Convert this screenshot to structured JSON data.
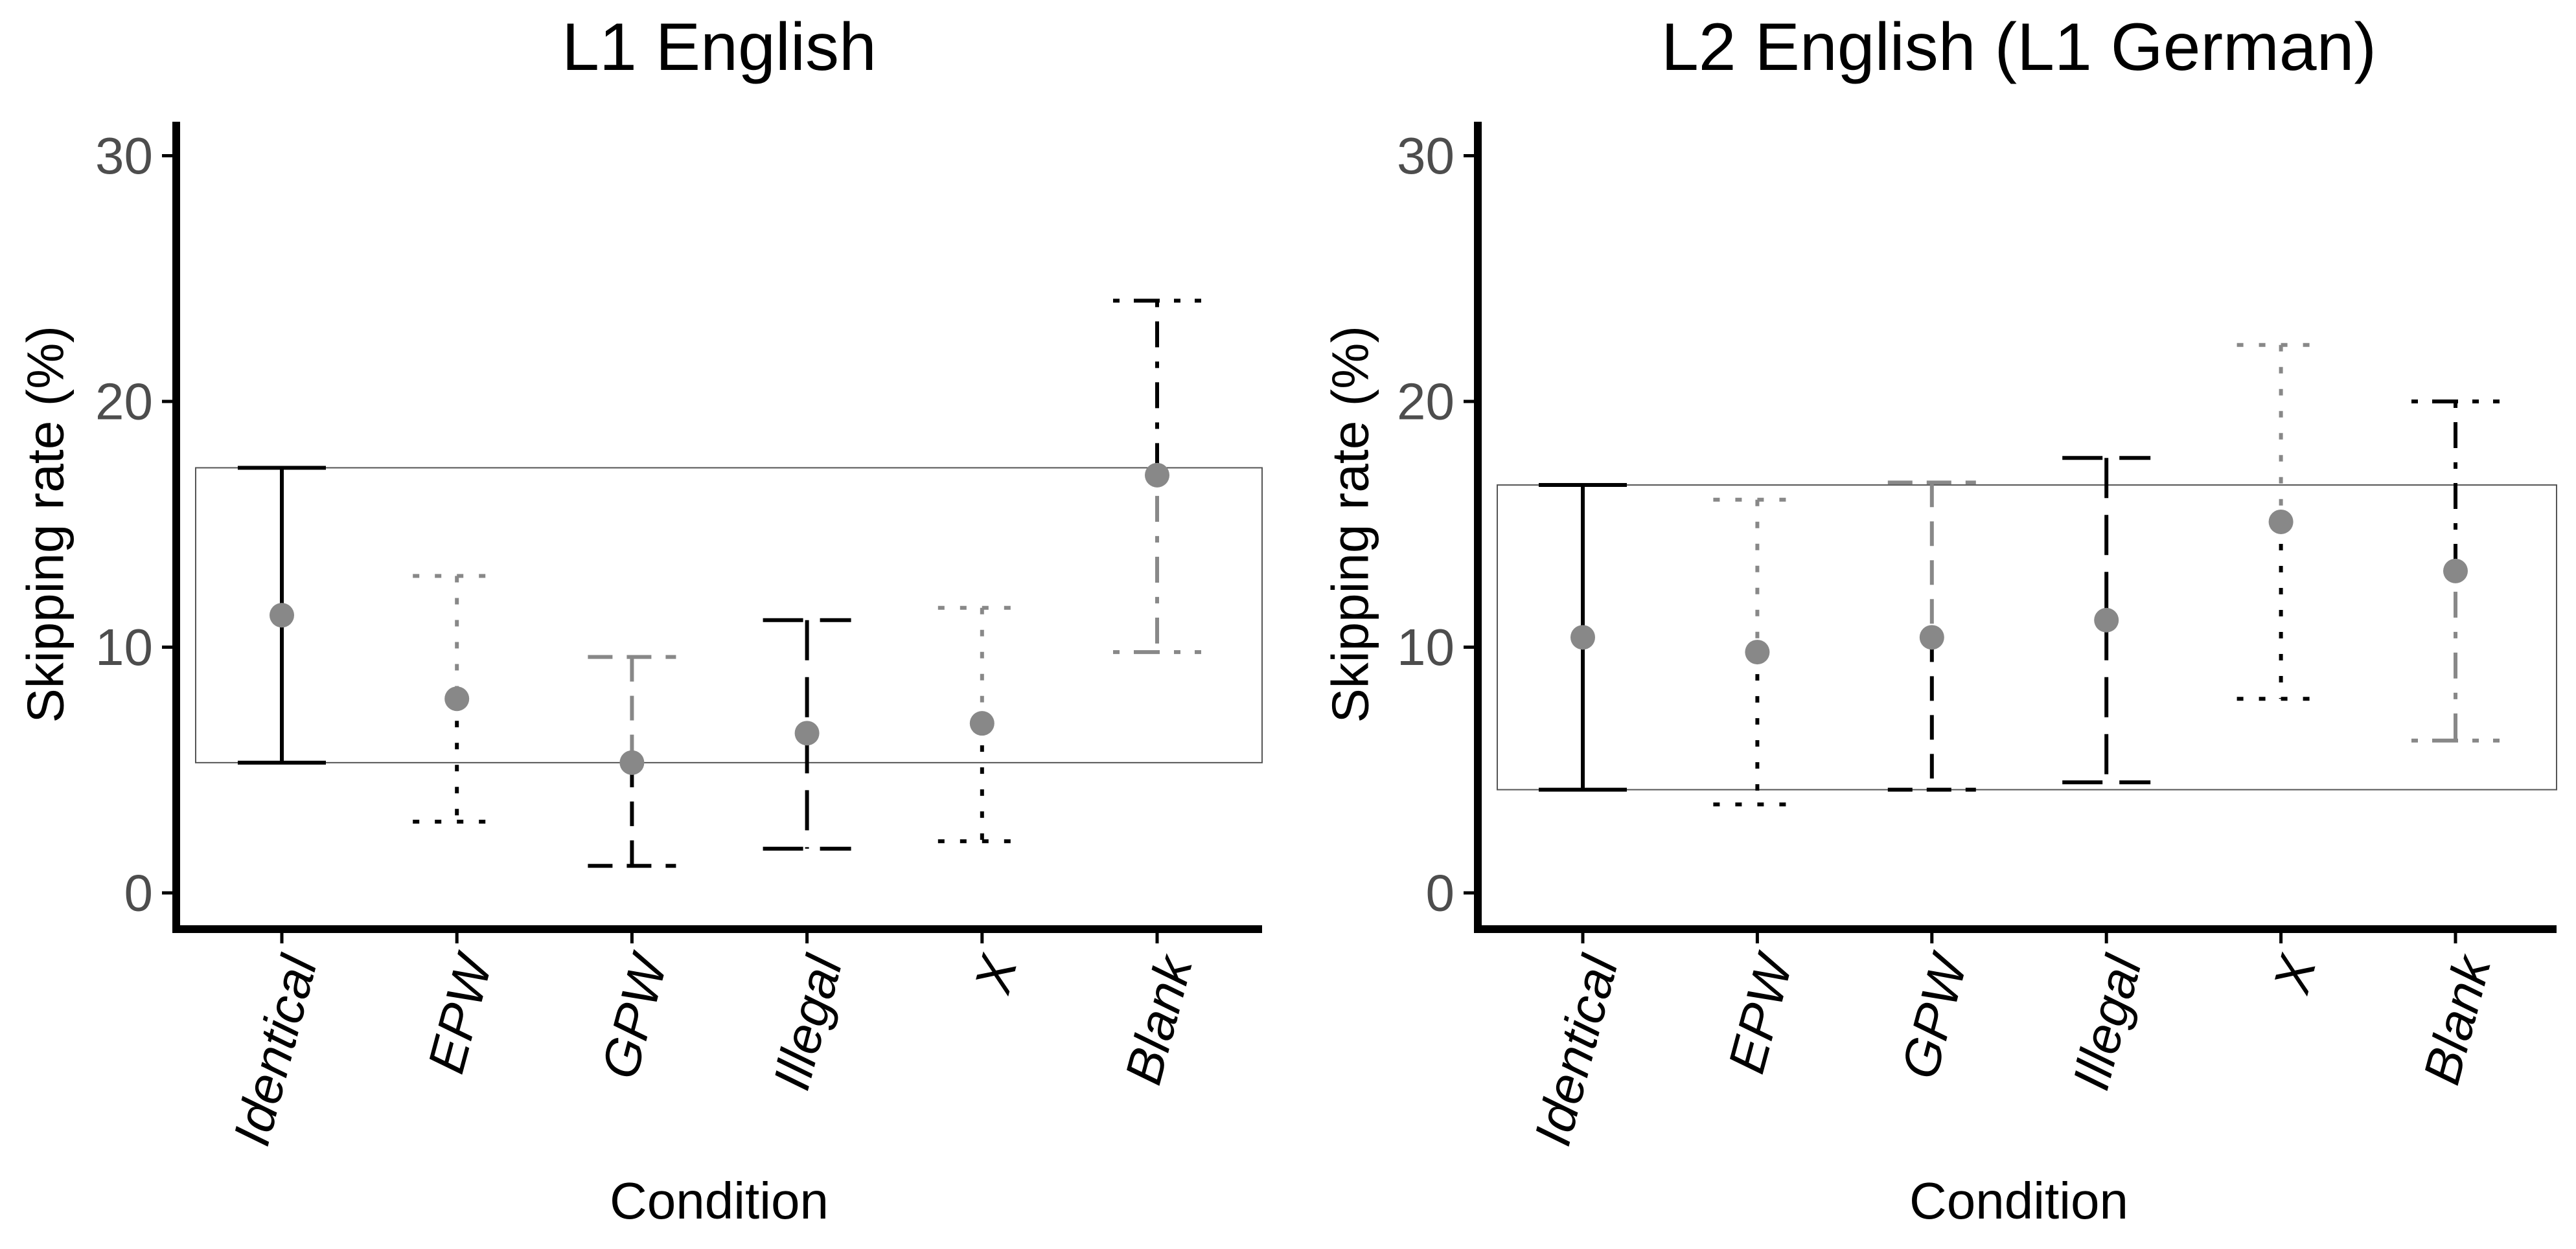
{
  "chart_data": [
    {
      "type": "errorbar",
      "title": "L1 English",
      "xlabel": "Condition",
      "ylabel": "Skipping rate (%)",
      "ylim": [
        0,
        30
      ],
      "yticks": [
        0,
        10,
        20,
        30
      ],
      "categories": [
        "Identical",
        "EPW",
        "GPW",
        "Illegal",
        "X",
        "Blank"
      ],
      "means": [
        11.3,
        7.9,
        5.3,
        6.5,
        6.9,
        17.0
      ],
      "lower": [
        5.3,
        2.9,
        1.1,
        1.8,
        2.1,
        9.8
      ],
      "upper": [
        17.3,
        12.9,
        9.6,
        11.1,
        11.6,
        24.1
      ],
      "reference_band": [
        5.3,
        17.3
      ],
      "grid": false
    },
    {
      "type": "errorbar",
      "title": "L2 English (L1 German)",
      "xlabel": "Condition",
      "ylabel": "Skipping rate (%)",
      "ylim": [
        0,
        30
      ],
      "yticks": [
        0,
        10,
        20,
        30
      ],
      "categories": [
        "Identical",
        "EPW",
        "GPW",
        "Illegal",
        "X",
        "Blank"
      ],
      "means": [
        10.4,
        9.8,
        10.4,
        11.1,
        15.1,
        13.1
      ],
      "lower": [
        4.2,
        3.6,
        4.2,
        4.5,
        7.9,
        6.2
      ],
      "upper": [
        16.6,
        16.0,
        16.7,
        17.7,
        22.3,
        20.0
      ],
      "reference_band": [
        4.2,
        16.6
      ],
      "grid": false
    }
  ],
  "style": {
    "line_types": [
      "solid",
      "dotted",
      "dashed",
      "longdash",
      "dotted",
      "dotdash"
    ],
    "upper_colors": [
      "#000000",
      "#888888",
      "#888888",
      "#000000",
      "#888888",
      "#000000"
    ],
    "lower_colors": [
      "#000000",
      "#000000",
      "#000000",
      "#000000",
      "#000000",
      "#888888"
    ],
    "point_color": "#888888",
    "axis_color": "#000000",
    "tick_label_color": "#4d4d4d"
  }
}
